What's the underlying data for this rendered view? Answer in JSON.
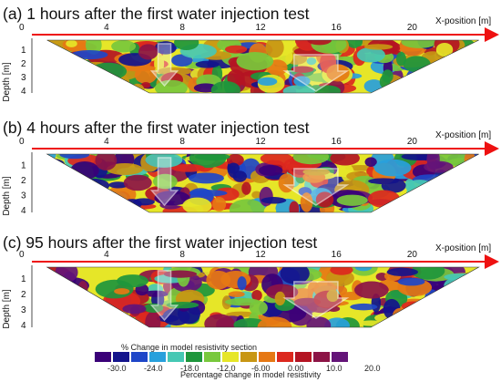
{
  "chart_data": {
    "type": "heatmap",
    "shared": {
      "xlabel": "X-position [m]",
      "ylabel": "Depth [m]",
      "x_ticks": [
        0,
        4,
        8,
        12,
        16,
        20
      ],
      "y_ticks": [
        1,
        2,
        3,
        4
      ],
      "xlim": [
        0,
        24
      ],
      "ylim": [
        0,
        4
      ]
    },
    "panels": [
      {
        "title": "(a) 1 hours after the first water injection test"
      },
      {
        "title": "(b) 4 hours after the first water injection test"
      },
      {
        "title": "(c) 95 hours after the first water injection test"
      }
    ],
    "colorbar": {
      "title": "% Change in model resistivity section",
      "label": "Percentage change in model resistivity",
      "tick_labels": [
        "-30.0",
        "-24.0",
        "-18.0",
        "-12.0",
        "-6.00",
        "0.00",
        "10.0",
        "20.0"
      ],
      "colors": [
        "#3a0078",
        "#14148c",
        "#1e46c8",
        "#28a0dc",
        "#46c8b4",
        "#1e963c",
        "#78c83c",
        "#e6e628",
        "#c89614",
        "#e67814",
        "#dc281e",
        "#b41423",
        "#8c1446",
        "#641478"
      ]
    }
  }
}
